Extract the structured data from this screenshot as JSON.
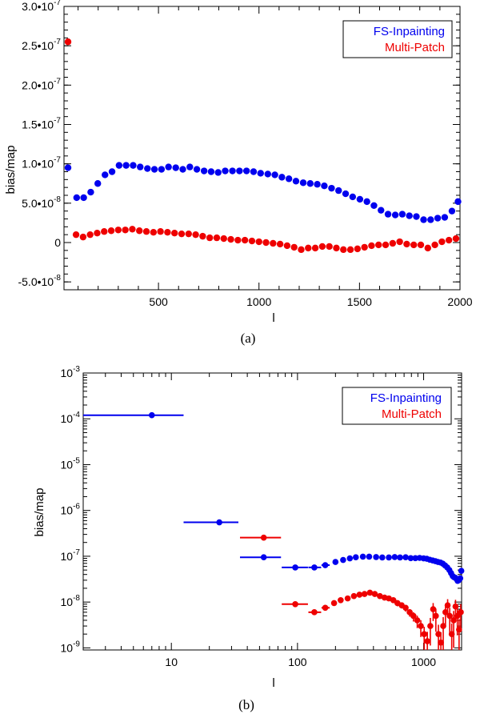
{
  "colors": {
    "fs": "#0000ee",
    "mp": "#ee0000",
    "axis": "#000000",
    "background": "#ffffff"
  },
  "chart_data": [
    {
      "type": "scatter",
      "id": "a",
      "caption": "(a)",
      "xlabel": "l",
      "ylabel": "bias/map",
      "xscale": "linear",
      "yscale": "linear",
      "xlim": [
        30,
        2000
      ],
      "ylim": [
        -6e-08,
        3e-07
      ],
      "xticks": [
        500,
        1000,
        1500,
        2000
      ],
      "xtick_labels": [
        "500",
        "1000",
        "1500",
        "2000"
      ],
      "yticks": [
        -5e-08,
        0,
        5e-08,
        1e-07,
        1.5e-07,
        2e-07,
        2.5e-07,
        3e-07
      ],
      "ytick_labels": [
        {
          "mant": "-5.0•10",
          "exp": "-8"
        },
        {
          "mant": "0",
          "exp": ""
        },
        {
          "mant": "5.0•10",
          "exp": "-8"
        },
        {
          "mant": "1.0•10",
          "exp": "-7"
        },
        {
          "mant": "1.5•10",
          "exp": "-7"
        },
        {
          "mant": "2.0•10",
          "exp": "-7"
        },
        {
          "mant": "2.5•10",
          "exp": "-7"
        },
        {
          "mant": "3.0•10",
          "exp": "-7"
        }
      ],
      "legend": {
        "position": "top-right",
        "entries": [
          "FS-Inpainting",
          "Multi-Patch"
        ]
      },
      "series": [
        {
          "name": "FS-Inpainting",
          "color": "#0000ee",
          "x": [
            50,
            93,
            128,
            163,
            198,
            234,
            269,
            304,
            339,
            374,
            409,
            445,
            480,
            515,
            550,
            586,
            621,
            656,
            691,
            727,
            762,
            797,
            832,
            868,
            903,
            938,
            973,
            1008,
            1044,
            1079,
            1114,
            1149,
            1184,
            1220,
            1255,
            1290,
            1325,
            1361,
            1396,
            1431,
            1466,
            1502,
            1537,
            1572,
            1607,
            1642,
            1678,
            1713,
            1748,
            1783,
            1819,
            1854,
            1889,
            1924,
            1960
          ],
          "y": [
            9.5e-08,
            5.7e-08,
            5.7e-08,
            6.4e-08,
            7.5e-08,
            8.6e-08,
            9e-08,
            9.8e-08,
            9.8e-08,
            9.8e-08,
            9.6e-08,
            9.4e-08,
            9.3e-08,
            9.3e-08,
            9.6e-08,
            9.5e-08,
            9.3e-08,
            9.6e-08,
            9.3e-08,
            9.1e-08,
            9e-08,
            8.9e-08,
            9.1e-08,
            9.1e-08,
            9.1e-08,
            9.1e-08,
            9e-08,
            8.8e-08,
            8.7e-08,
            8.6e-08,
            8.3e-08,
            8.1e-08,
            7.8e-08,
            7.6e-08,
            7.5e-08,
            7.4e-08,
            7.2e-08,
            6.9e-08,
            6.6e-08,
            6.2e-08,
            5.8e-08,
            5.5e-08,
            5.2e-08,
            4.7e-08,
            4.1e-08,
            3.6e-08,
            3.5e-08,
            3.6e-08,
            3.4e-08,
            3.3e-08,
            2.9e-08,
            2.9e-08,
            3.1e-08,
            3.2e-08,
            4e-08
          ],
          "y_extra": [
            [
              1990,
              5.2e-08
            ]
          ]
        },
        {
          "name": "Multi-Patch",
          "color": "#ee0000",
          "x": [
            50,
            90,
            125,
            160,
            195,
            230,
            265,
            300,
            335,
            370,
            405,
            440,
            475,
            510,
            545,
            580,
            615,
            650,
            685,
            720,
            755,
            790,
            825,
            860,
            895,
            930,
            965,
            1000,
            1035,
            1070,
            1105,
            1140,
            1175,
            1210,
            1245,
            1280,
            1315,
            1350,
            1385,
            1420,
            1455,
            1490,
            1525,
            1560,
            1595,
            1630,
            1665,
            1700,
            1735,
            1770,
            1805,
            1840,
            1875,
            1910,
            1945,
            1980
          ],
          "y": [
            2.55e-07,
            1e-08,
            7e-09,
            1e-08,
            1.2e-08,
            1.4e-08,
            1.5e-08,
            1.6e-08,
            1.6e-08,
            1.7e-08,
            1.5e-08,
            1.4e-08,
            1.3e-08,
            1.4e-08,
            1.3e-08,
            1.2e-08,
            1.1e-08,
            1.1e-08,
            1e-08,
            8e-09,
            6e-09,
            6e-09,
            5e-09,
            4e-09,
            3e-09,
            3e-09,
            2e-09,
            1e-09,
            0,
            -1e-09,
            -2e-09,
            -4e-09,
            -6e-09,
            -9e-09,
            -7e-09,
            -7e-09,
            -5e-09,
            -5e-09,
            -7e-09,
            -9e-09,
            -9e-09,
            -8e-09,
            -6e-09,
            -4e-09,
            -3e-09,
            -3e-09,
            -1e-09,
            1e-09,
            -2e-09,
            -3e-09,
            -3e-09,
            -7e-09,
            -3e-09,
            1e-09,
            3e-09,
            5e-09
          ]
        }
      ]
    },
    {
      "type": "scatter",
      "id": "b",
      "caption": "(b)",
      "xlabel": "l",
      "ylabel": "bias/map",
      "xscale": "log",
      "yscale": "log",
      "xlim": [
        2,
        2000
      ],
      "ylim": [
        9e-10,
        0.001
      ],
      "xticks": [
        10,
        100,
        1000
      ],
      "xtick_labels": [
        "10",
        "100",
        "1000"
      ],
      "yticks": [
        1e-09,
        1e-08,
        1e-07,
        1e-06,
        1e-05,
        0.0001,
        0.001
      ],
      "ytick_labels": [
        {
          "mant": "10",
          "exp": "-9"
        },
        {
          "mant": "10",
          "exp": "-8"
        },
        {
          "mant": "10",
          "exp": "-7"
        },
        {
          "mant": "10",
          "exp": "-6"
        },
        {
          "mant": "10",
          "exp": "-5"
        },
        {
          "mant": "10",
          "exp": "-4"
        },
        {
          "mant": "10",
          "exp": "-3"
        }
      ],
      "legend": {
        "position": "top-right",
        "entries": [
          "FS-Inpainting",
          "Multi-Patch"
        ]
      },
      "series": [
        {
          "name": "FS-Inpainting",
          "color": "#0000ee",
          "binned_points": [
            {
              "x": 7,
              "y": 0.00012,
              "xlo": 2,
              "xhi": 12.5
            },
            {
              "x": 24,
              "y": 5.5e-07,
              "xlo": 12.5,
              "xhi": 34
            },
            {
              "x": 54,
              "y": 9.5e-08,
              "xlo": 35,
              "xhi": 74
            },
            {
              "x": 96,
              "y": 5.7e-08,
              "xlo": 75,
              "xhi": 121
            },
            {
              "x": 136,
              "y": 5.7e-08,
              "xlo": 122,
              "xhi": 154
            },
            {
              "x": 166,
              "y": 6.4e-08,
              "xlo": 155,
              "xhi": 180
            }
          ],
          "x": [
            200,
            230,
            260,
            290,
            330,
            370,
            420,
            470,
            530,
            590,
            650,
            720,
            790,
            860,
            930,
            1000,
            1060,
            1120,
            1180,
            1240,
            1300,
            1360,
            1420,
            1480,
            1540,
            1600,
            1650,
            1700,
            1740,
            1780,
            1820,
            1860,
            1900,
            1950,
            1990
          ],
          "y": [
            7.5e-08,
            8.3e-08,
            9e-08,
            9.5e-08,
            9.8e-08,
            9.8e-08,
            9.6e-08,
            9.4e-08,
            9.4e-08,
            9.6e-08,
            9.4e-08,
            9.5e-08,
            9.1e-08,
            9.1e-08,
            9.2e-08,
            9e-08,
            8.8e-08,
            8.4e-08,
            8.1e-08,
            7.8e-08,
            7.5e-08,
            7.3e-08,
            6.9e-08,
            6.3e-08,
            5.7e-08,
            5e-08,
            4.3e-08,
            3.7e-08,
            3.5e-08,
            3.4e-08,
            3.2e-08,
            2.9e-08,
            3e-08,
            3.3e-08,
            4.8e-08
          ]
        },
        {
          "name": "Multi-Patch",
          "color": "#ee0000",
          "binned_points": [
            {
              "x": 54,
              "y": 2.55e-07,
              "xlo": 35,
              "xhi": 74
            },
            {
              "x": 96,
              "y": 9e-09,
              "xlo": 75,
              "xhi": 121
            },
            {
              "x": 136,
              "y": 6e-09,
              "xlo": 122,
              "xhi": 154
            },
            {
              "x": 166,
              "y": 7.5e-09,
              "xlo": 155,
              "xhi": 180
            }
          ],
          "x": [
            195,
            220,
            250,
            280,
            310,
            340,
            375,
            410,
            450,
            490,
            530,
            575,
            620,
            670,
            720,
            775,
            830,
            890,
            950,
            1010,
            1070,
            1130,
            1190,
            1250,
            1310,
            1370,
            1430,
            1490,
            1550,
            1610,
            1670,
            1730,
            1790,
            1850,
            1910,
            1970
          ],
          "y": [
            9.5e-09,
            1.1e-08,
            1.2e-08,
            1.35e-08,
            1.45e-08,
            1.5e-08,
            1.6e-08,
            1.5e-08,
            1.35e-08,
            1.25e-08,
            1.2e-08,
            1.1e-08,
            9.5e-09,
            8.5e-09,
            7.5e-09,
            6e-09,
            5e-09,
            4e-09,
            3e-09,
            2e-09,
            1.4e-09,
            3e-09,
            7e-09,
            5e-09,
            2e-09,
            1.3e-09,
            3e-09,
            6e-09,
            8.5e-09,
            5e-09,
            2e-09,
            4e-09,
            8e-09,
            5e-09,
            2.5e-09,
            6e-09
          ],
          "errors": [
            0.05,
            0.05,
            0.05,
            0.05,
            0.05,
            0.05,
            0.05,
            0.05,
            0.05,
            0.05,
            0.05,
            0.05,
            0.06,
            0.06,
            0.07,
            0.08,
            0.1,
            0.13,
            0.17,
            0.22,
            0.3,
            0.25,
            0.18,
            0.22,
            0.3,
            0.35,
            0.28,
            0.2,
            0.18,
            0.25,
            0.35,
            0.3,
            0.2,
            0.25,
            0.35,
            0.25
          ]
        }
      ]
    }
  ]
}
